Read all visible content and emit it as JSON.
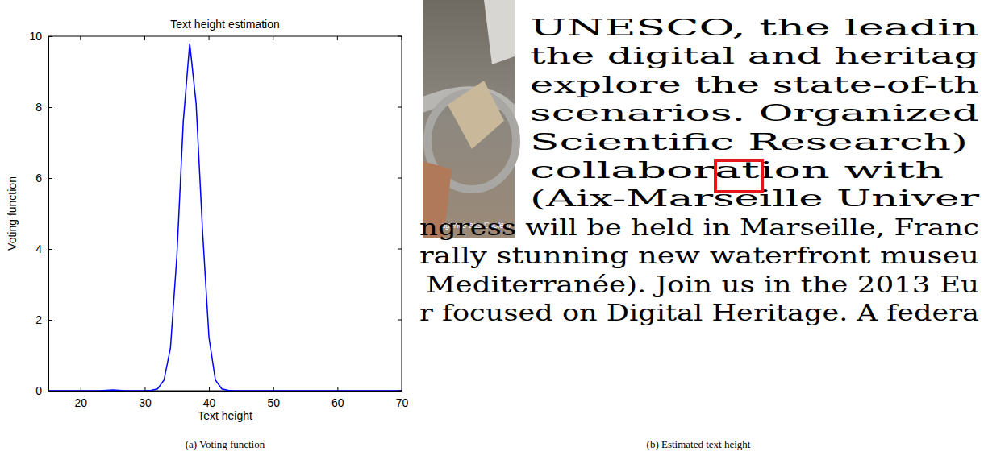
{
  "chart_data": {
    "type": "line",
    "title": "Text height estimation",
    "x_label": "Text height",
    "y_label": "Voting function",
    "x": [
      15,
      16,
      17,
      18,
      19,
      20,
      21,
      22,
      23,
      24,
      25,
      26,
      27,
      28,
      29,
      30,
      31,
      32,
      33,
      34,
      35,
      36,
      37,
      38,
      39,
      40,
      41,
      42,
      43,
      44,
      45,
      46,
      47,
      48,
      49,
      50,
      51,
      52,
      53,
      54,
      55,
      56,
      57,
      58,
      59,
      60,
      61,
      62,
      63,
      64,
      65,
      66,
      67,
      68,
      69,
      70
    ],
    "values": [
      0,
      0,
      0,
      0,
      0,
      0,
      0,
      0,
      0,
      0.01,
      0.02,
      0.01,
      0,
      0,
      0,
      0,
      0.01,
      0.05,
      0.3,
      1.2,
      3.8,
      7.6,
      9.8,
      8.1,
      4.5,
      1.5,
      0.3,
      0.05,
      0.01,
      0,
      0,
      0,
      0,
      0,
      0,
      0,
      0,
      0,
      0,
      0,
      0,
      0,
      0,
      0,
      0,
      0,
      0,
      0,
      0,
      0,
      0,
      0,
      0,
      0,
      0,
      0
    ],
    "color": "#0000ff",
    "xlim": [
      15,
      70
    ],
    "ylim": [
      0,
      10
    ],
    "xticks": [
      20,
      30,
      40,
      50,
      60,
      70
    ],
    "yticks": [
      0,
      2,
      4,
      6,
      8,
      10
    ]
  },
  "captions": [
    "(a) Voting function",
    "(b) Estimated text height"
  ],
  "document_image": {
    "photo_credit": "agence aps ©golem",
    "column_lines": [
      "UNESCO, the leadin",
      "the digital and heritag",
      "explore the state-of-th",
      "scenarios.  Organized",
      "Scientific  Research)",
      "collaboration   with",
      "(Aix-Marseille Univer"
    ],
    "full_lines": [
      "ngress will be held in Marseille, Franc",
      "rally stunning new waterfront museu",
      "Mediterranée). Join us in the 2013 Eu",
      "r focused on Digital Heritage. A federa"
    ]
  }
}
